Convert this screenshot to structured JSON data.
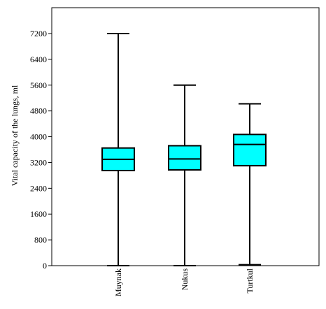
{
  "chart_data": {
    "type": "box",
    "title": "",
    "xlabel": "",
    "ylabel": "Vital capacity of the lungs, ml",
    "ylim": [
      0,
      8000
    ],
    "yticks": [
      0,
      800,
      1600,
      2400,
      3200,
      4000,
      4800,
      5600,
      6400,
      7200
    ],
    "categories": [
      "Muynak",
      "Nukus",
      "Turtkul"
    ],
    "boxes": [
      {
        "category": "Muynak",
        "whisker_low": 0,
        "q1": 2950,
        "median": 3300,
        "q3": 3650,
        "whisker_high": 7200
      },
      {
        "category": "Nukus",
        "whisker_low": 0,
        "q1": 2970,
        "median": 3310,
        "q3": 3720,
        "whisker_high": 5600
      },
      {
        "category": "Turtkul",
        "whisker_low": 30,
        "q1": 3100,
        "median": 3760,
        "q3": 4070,
        "whisker_high": 5020
      }
    ],
    "box_color": "#00ffff",
    "grid": false,
    "legend": "none"
  }
}
